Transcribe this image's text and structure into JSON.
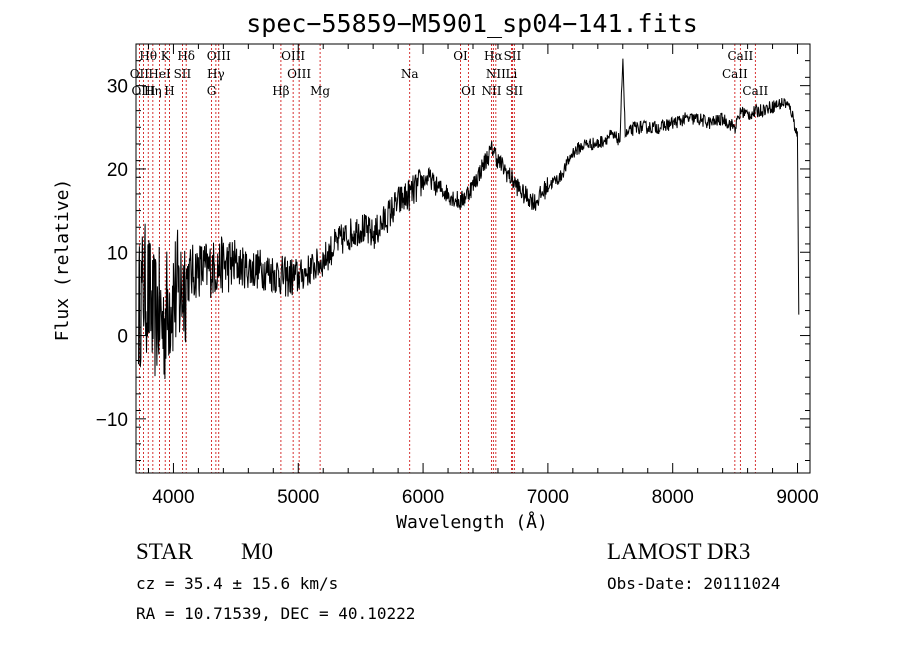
{
  "chart_data": {
    "type": "line",
    "title": "spec−55859−M5901_sp04−141.fits",
    "xlabel": "Wavelength (Å)",
    "ylabel": "Flux (relative)",
    "xlim": [
      3700,
      9100
    ],
    "ylim": [
      -16.5,
      35
    ],
    "x_ticks": [
      4000,
      5000,
      6000,
      7000,
      8000,
      9000
    ],
    "x_tick_labels": [
      "4000",
      "5000",
      "6000",
      "7000",
      "8000",
      "9000"
    ],
    "y_ticks": [
      -10,
      0,
      10,
      20,
      30
    ],
    "y_tick_labels": [
      "−10",
      "0",
      "10",
      "20",
      "30"
    ],
    "series": [
      {
        "name": "flux",
        "color": "#000000",
        "x": [
          3720,
          3760,
          3800,
          3840,
          3880,
          3920,
          3960,
          4000,
          4050,
          4100,
          4150,
          4200,
          4300,
          4400,
          4500,
          4600,
          4700,
          4800,
          4900,
          5000,
          5100,
          5200,
          5300,
          5400,
          5500,
          5600,
          5700,
          5800,
          5900,
          6000,
          6050,
          6100,
          6200,
          6300,
          6400,
          6500,
          6560,
          6600,
          6700,
          6800,
          6900,
          7000,
          7100,
          7200,
          7300,
          7400,
          7500,
          7580,
          7600,
          7620,
          7700,
          7800,
          7900,
          8000,
          8100,
          8200,
          8300,
          8400,
          8500,
          8550,
          8600,
          8700,
          8800,
          8900,
          8950,
          9000,
          9010
        ],
        "y": [
          3,
          6,
          5,
          2,
          3,
          1,
          4,
          5,
          5,
          7,
          7.5,
          8,
          8,
          8.5,
          8.5,
          8,
          8,
          7.5,
          7,
          7,
          8,
          9,
          11,
          12,
          13,
          12,
          14,
          16,
          17,
          18.5,
          19,
          18,
          17,
          16,
          18,
          21,
          22.5,
          21,
          19,
          17,
          16,
          18,
          19,
          22,
          23,
          23,
          24,
          23.5,
          34,
          24,
          25,
          25,
          25,
          25.5,
          26,
          26,
          25.5,
          26,
          25,
          27,
          26.5,
          27,
          27.5,
          28,
          27,
          24,
          2
        ]
      }
    ],
    "noise_amplitude_by_wavelength": [
      {
        "from": 3700,
        "to": 4100,
        "amplitude": 8
      },
      {
        "from": 4100,
        "to": 4500,
        "amplitude": 3.5
      },
      {
        "from": 4500,
        "to": 5000,
        "amplitude": 2.5
      },
      {
        "from": 5000,
        "to": 6000,
        "amplitude": 2
      },
      {
        "from": 6000,
        "to": 7000,
        "amplitude": 1.2
      },
      {
        "from": 7000,
        "to": 9100,
        "amplitude": 0.8
      }
    ],
    "spectral_lines": [
      {
        "label": "Hθ",
        "wavelength": 3798,
        "row": 0
      },
      {
        "label": "K",
        "wavelength": 3934,
        "row": 0
      },
      {
        "label": "Hδ",
        "wavelength": 4102,
        "row": 0
      },
      {
        "label": "OIII",
        "wavelength": 4363,
        "row": 0
      },
      {
        "label": "OIII",
        "wavelength": 4959,
        "row": 0
      },
      {
        "label": "OI",
        "wavelength": 6300,
        "row": 0
      },
      {
        "label": "Hα",
        "wavelength": 6563,
        "row": 0
      },
      {
        "label": "SII",
        "wavelength": 6716,
        "row": 0
      },
      {
        "label": "CaII",
        "wavelength": 8542,
        "row": 0
      },
      {
        "label": "OII",
        "wavelength": 3727,
        "row": 1
      },
      {
        "label": "HeI",
        "wavelength": 3889,
        "row": 1
      },
      {
        "label": "SII",
        "wavelength": 4072,
        "row": 1
      },
      {
        "label": "Hγ",
        "wavelength": 4340,
        "row": 1
      },
      {
        "label": "OIII",
        "wavelength": 5007,
        "row": 1
      },
      {
        "label": "Na",
        "wavelength": 5893,
        "row": 1
      },
      {
        "label": "NII",
        "wavelength": 6583,
        "row": 1
      },
      {
        "label": "Li",
        "wavelength": 6708,
        "row": 1
      },
      {
        "label": "CaII",
        "wavelength": 8498,
        "row": 1
      },
      {
        "label": "OIII",
        "wavelength": 3760,
        "row": 2
      },
      {
        "label": "Hη",
        "wavelength": 3835,
        "row": 2
      },
      {
        "label": "H",
        "wavelength": 3968,
        "row": 2
      },
      {
        "label": "G",
        "wavelength": 4305,
        "row": 2
      },
      {
        "label": "Hβ",
        "wavelength": 4861,
        "row": 2
      },
      {
        "label": "Mg",
        "wavelength": 5175,
        "row": 2
      },
      {
        "label": "OI",
        "wavelength": 6363,
        "row": 2
      },
      {
        "label": "NII",
        "wavelength": 6548,
        "row": 2
      },
      {
        "label": "SII",
        "wavelength": 6731,
        "row": 2
      },
      {
        "label": "CaII",
        "wavelength": 8662,
        "row": 2
      }
    ]
  },
  "info": {
    "object_class": "STAR",
    "subclass": "M0",
    "survey": "LAMOST DR3",
    "cz": "cz = 35.4 ± 15.6 km/s",
    "obs_date": "Obs-Date: 20111024",
    "coords": "RA =  10.71539, DEC =  40.10222"
  },
  "colors": {
    "line_marker": "#cc0000",
    "axis": "#000000",
    "spectrum": "#000000"
  }
}
